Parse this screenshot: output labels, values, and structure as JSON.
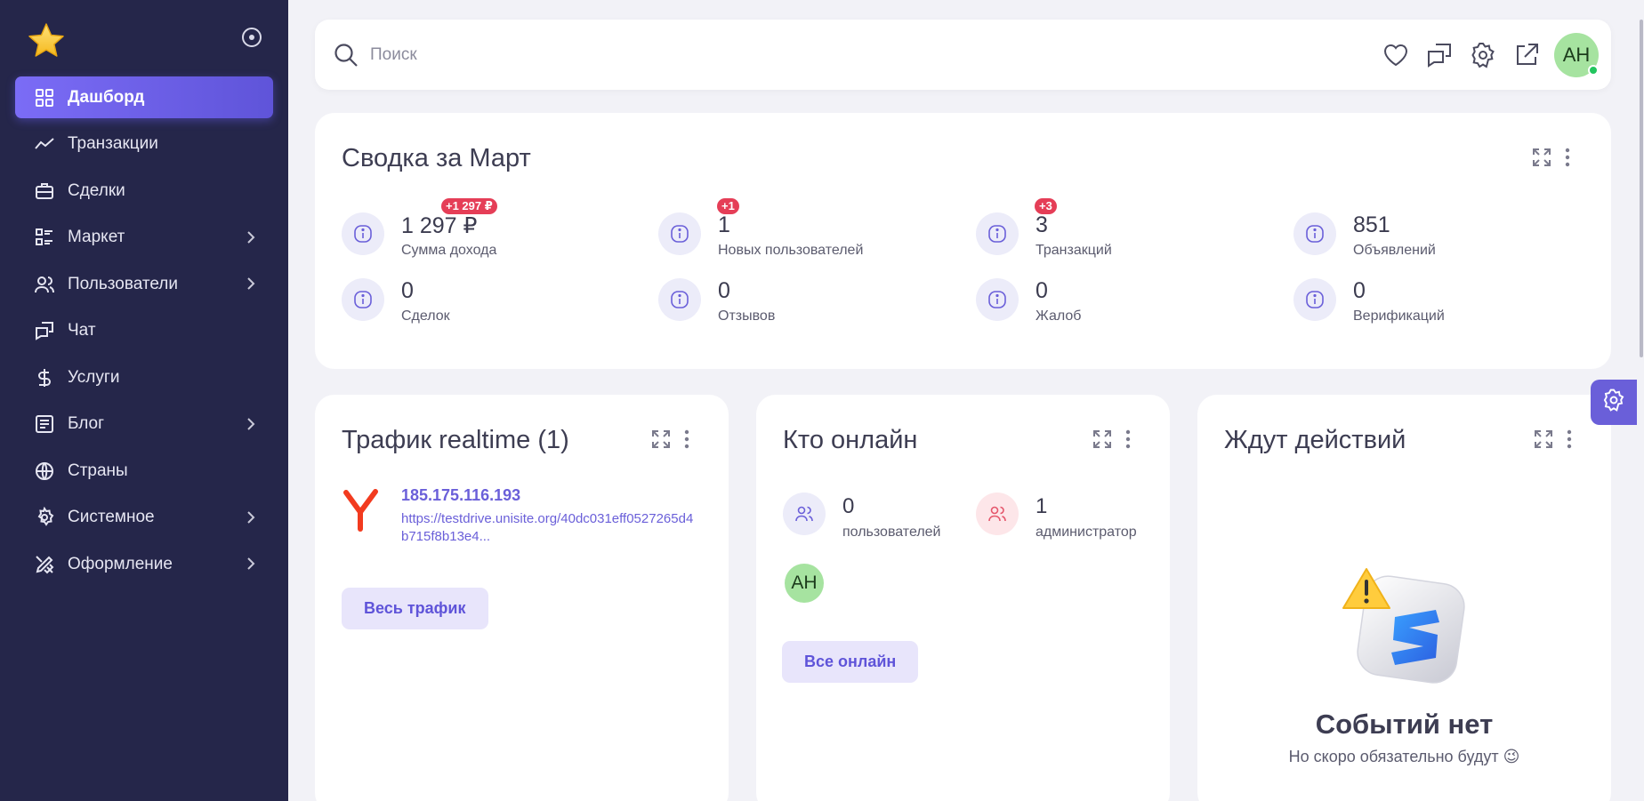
{
  "sidebar": {
    "items": [
      {
        "label": "Дашборд",
        "icon": "dashboard-grid-icon",
        "active": true
      },
      {
        "label": "Транзакции",
        "icon": "trend-line-icon"
      },
      {
        "label": "Сделки",
        "icon": "briefcase-icon"
      },
      {
        "label": "Маркет",
        "icon": "list-icon",
        "submenu": true
      },
      {
        "label": "Пользователи",
        "icon": "users-icon",
        "submenu": true
      },
      {
        "label": "Чат",
        "icon": "chat-icon"
      },
      {
        "label": "Услуги",
        "icon": "dollar-icon"
      },
      {
        "label": "Блог",
        "icon": "article-icon",
        "submenu": true
      },
      {
        "label": "Страны",
        "icon": "globe-icon"
      },
      {
        "label": "Системное",
        "icon": "gear-icon",
        "submenu": true
      },
      {
        "label": "Оформление",
        "icon": "design-tools-icon",
        "submenu": true
      }
    ]
  },
  "topbar": {
    "search_placeholder": "Поиск",
    "avatar_initials": "AH"
  },
  "summary": {
    "title": "Сводка за Март",
    "stats": [
      {
        "value": "1 297 ₽",
        "label": "Сумма дохода",
        "delta": "+1 297 ₽"
      },
      {
        "value": "1",
        "label": "Новых пользователей",
        "delta": "+1"
      },
      {
        "value": "3",
        "label": "Транзакций",
        "delta": "+3"
      },
      {
        "value": "851",
        "label": "Объявлений"
      },
      {
        "value": "0",
        "label": "Сделок"
      },
      {
        "value": "0",
        "label": "Отзывов"
      },
      {
        "value": "0",
        "label": "Жалоб"
      },
      {
        "value": "0",
        "label": "Верификаций"
      }
    ]
  },
  "traffic": {
    "title": "Трафик realtime (1)",
    "visit": {
      "ip": "185.175.116.193",
      "url": "https://testdrive.unisite.org/40dc031eff0527265d4b715f8b13e4..."
    },
    "button": "Весь трафик"
  },
  "online": {
    "title": "Кто онлайн",
    "users_value": "0",
    "users_label": "пользователей",
    "admins_value": "1",
    "admins_label": "администратор",
    "avatar_initials": "AH",
    "button": "Все онлайн"
  },
  "pending": {
    "title": "Ждут действий",
    "empty_title": "Событий нет",
    "empty_sub": "Но скоро обязательно будут 😉"
  },
  "colors": {
    "sidebar_bg": "#25264a",
    "accent": "#6a5fd9",
    "badge": "#e53e57",
    "avatar": "#a6e3a0"
  }
}
